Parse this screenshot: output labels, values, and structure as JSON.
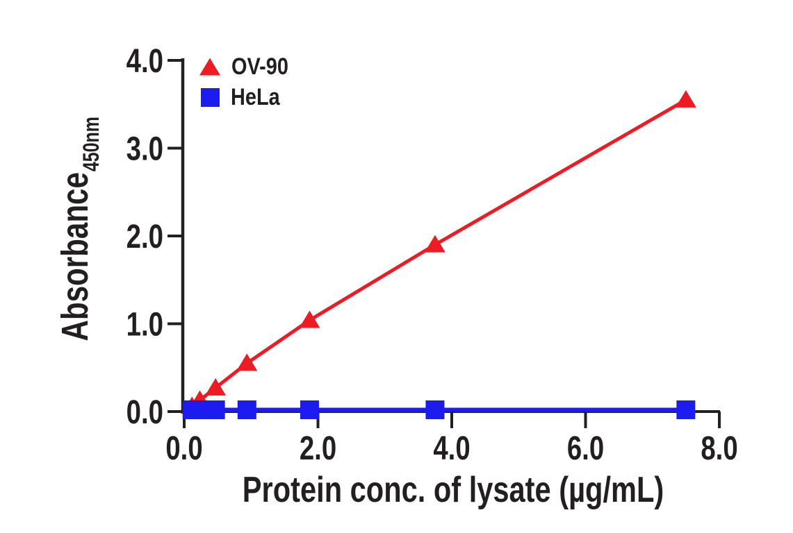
{
  "figure": {
    "background": "#ffffff",
    "text_color": "#231f20"
  },
  "chart_data": {
    "type": "line",
    "title": "",
    "xlabel": "Protein conc. of lysate (µg/mL)",
    "ylabel": "Absorbance",
    "ylabel_subscript": "450nm",
    "x": [
      0.117,
      0.234,
      0.469,
      0.938,
      1.875,
      3.75,
      7.5
    ],
    "series": [
      {
        "name": "OV-90",
        "marker": "triangle",
        "color": "#ed1c24",
        "values": [
          0.06,
          0.13,
          0.27,
          0.55,
          1.04,
          1.9,
          3.55
        ]
      },
      {
        "name": "HeLa",
        "marker": "square",
        "color": "#1c1cf0",
        "values": [
          0.02,
          0.02,
          0.02,
          0.02,
          0.02,
          0.02,
          0.02
        ]
      }
    ],
    "xlim": [
      0,
      8
    ],
    "ylim": [
      0,
      4
    ],
    "xticks": {
      "values": [
        0,
        2,
        4,
        6,
        8
      ],
      "labels": [
        "0.0",
        "2.0",
        "4.0",
        "6.0",
        "8.0"
      ]
    },
    "yticks": {
      "values": [
        0,
        1,
        2,
        3,
        4
      ],
      "labels": [
        "0.0",
        "1.0",
        "2.0",
        "3.0",
        "4.0"
      ]
    },
    "grid": false,
    "legend_position": "top-left-inside",
    "axis_color": "#231f20",
    "text_color": "#231f20"
  },
  "legend": {
    "items": [
      {
        "label": "OV-90",
        "marker": "triangle",
        "color": "#ed1c24"
      },
      {
        "label": "HeLa",
        "marker": "square",
        "color": "#1c1cf0"
      }
    ]
  }
}
